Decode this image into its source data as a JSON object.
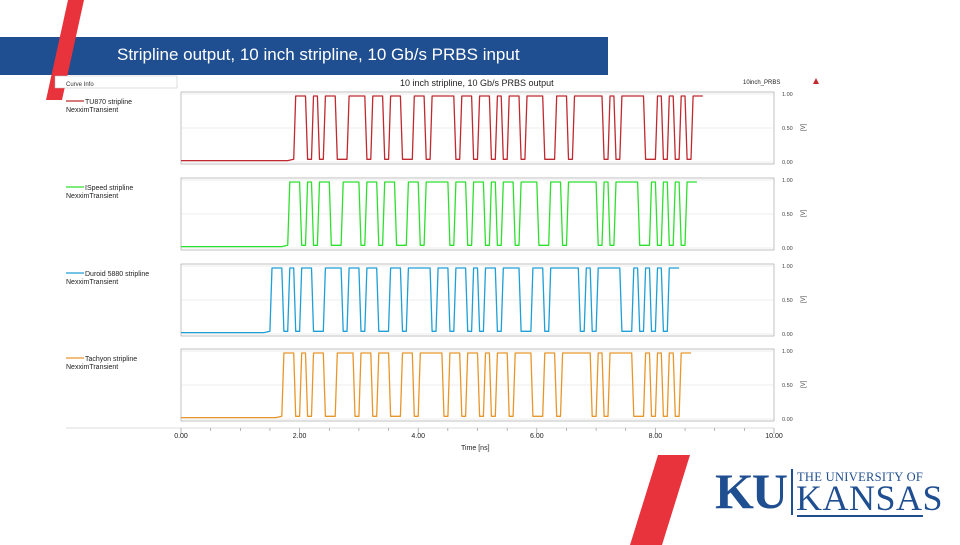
{
  "slide": {
    "title": "Stripline output, 10 inch stripline, 10 Gb/s PRBS input",
    "accent_colors": {
      "bar": "#1f4e91",
      "slash": "#e8333c"
    }
  },
  "legend_panel": {
    "header": "Curve Info"
  },
  "logo": {
    "ku": "KU",
    "line1": "THE UNIVERSITY OF",
    "line2": "KANSAS"
  },
  "chart_data": {
    "type": "line",
    "title": "10 inch stripline, 10 Gb/s PRBS output",
    "corner_label": "10inch_PRBS",
    "xlabel": "Time [ns]",
    "ylabel": "[V]",
    "xlim": [
      0,
      10
    ],
    "ylim": [
      0,
      1
    ],
    "x_ticks": [
      "0.00",
      "2.00",
      "4.00",
      "6.00",
      "8.00",
      "10.00"
    ],
    "y_ticks": [
      "1.00",
      "0.50",
      "0.00"
    ],
    "grid": true,
    "legend_placement": "left",
    "series": [
      {
        "name": "TU870 stripline",
        "sub": "NexximTransient",
        "color": "#c0292f",
        "start_ns": 1.8,
        "bits": "0110101100111011011001101111011011010110111001101111101011110010101011"
      },
      {
        "name": "ISpeed stripline",
        "sub": "NexximTransient",
        "color": "#2ee02e",
        "start_ns": 1.7,
        "bits": "0110101100111011011001101111011011010110111001101111101011110010101011"
      },
      {
        "name": "Duroid 5880 stripline",
        "sub": "NexximTransient",
        "color": "#1e9fd6",
        "start_ns": 1.4,
        "bits": "0110101100111011011001101111011011010110111001101111101011110010101011"
      },
      {
        "name": "Tachyon stripline",
        "sub": "NexximTransient",
        "color": "#e8962b",
        "start_ns": 1.6,
        "bits": "0110101100111011011001101111011011010110111001101111101011110010101011"
      }
    ]
  }
}
